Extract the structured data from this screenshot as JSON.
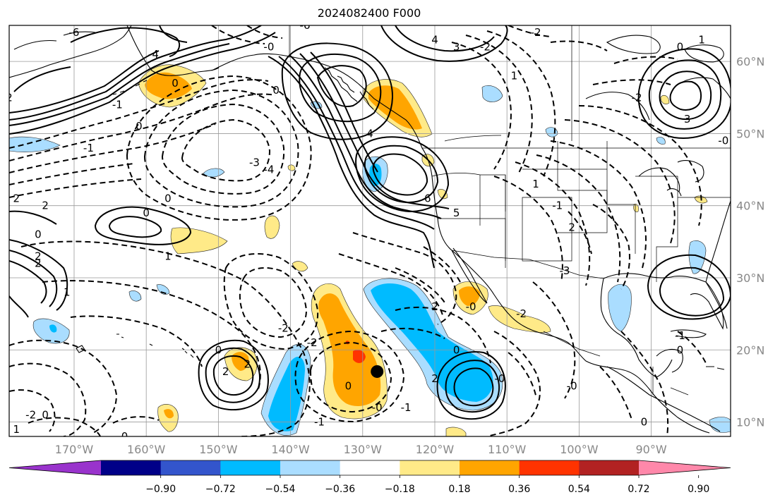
{
  "title": "2024082400 F000",
  "map": {
    "projection": "equirectangular",
    "lon_range": [
      -179,
      -79
    ],
    "lat_range": [
      8,
      65
    ],
    "grid": true,
    "lon_labels": [
      "170°W",
      "160°W",
      "150°W",
      "140°W",
      "130°W",
      "120°W",
      "110°W",
      "100°W",
      "90°W"
    ],
    "lat_labels": [
      "60°N",
      "50°N",
      "40°N",
      "30°N",
      "20°N",
      "10°N"
    ],
    "marker": {
      "type": "black-dot",
      "lon": "-128",
      "lat": "17"
    }
  },
  "contour_labels": [
    {
      "text": "2",
      "lon": -179,
      "lat": 55
    },
    {
      "text": "2",
      "lon": -178,
      "lat": 41
    },
    {
      "text": "2",
      "lon": -174,
      "lat": 40
    },
    {
      "text": "0",
      "lon": -175,
      "lat": 36
    },
    {
      "text": "2",
      "lon": -175,
      "lat": 33
    },
    {
      "text": "2",
      "lon": -175,
      "lat": 32
    },
    {
      "text": "1",
      "lon": -171,
      "lat": 28
    },
    {
      "text": "-1",
      "lon": -168,
      "lat": 48
    },
    {
      "text": "-3",
      "lon": -145,
      "lat": 46
    },
    {
      "text": "-4",
      "lon": -143,
      "lat": 45
    },
    {
      "text": "0",
      "lon": -157,
      "lat": 41
    },
    {
      "text": "0",
      "lon": -160,
      "lat": 39
    },
    {
      "text": "1",
      "lon": -157,
      "lat": 33
    },
    {
      "text": "-2",
      "lon": -176,
      "lat": 11
    },
    {
      "text": "1",
      "lon": -178,
      "lat": 9
    },
    {
      "text": "0",
      "lon": -174,
      "lat": 11
    },
    {
      "text": "0",
      "lon": -163,
      "lat": 8
    },
    {
      "text": "0",
      "lon": -150,
      "lat": 20
    },
    {
      "text": "2",
      "lon": -149,
      "lat": 17
    },
    {
      "text": "2",
      "lon": -146,
      "lat": 18
    },
    {
      "text": "-2",
      "lon": -141,
      "lat": 23
    },
    {
      "text": "-2",
      "lon": -137,
      "lat": 21
    },
    {
      "text": "0",
      "lon": -132,
      "lat": 15
    },
    {
      "text": "-0",
      "lon": -128,
      "lat": 12
    },
    {
      "text": "-1",
      "lon": -124,
      "lat": 12
    },
    {
      "text": "-1",
      "lon": -136,
      "lat": 10
    },
    {
      "text": "2",
      "lon": -120,
      "lat": 26
    },
    {
      "text": "0",
      "lon": -117,
      "lat": 20
    },
    {
      "text": "2",
      "lon": -120,
      "lat": 16
    },
    {
      "text": "-0",
      "lon": -111,
      "lat": 16
    },
    {
      "text": "-0",
      "lon": -101,
      "lat": 15
    },
    {
      "text": "0",
      "lon": -91,
      "lat": 10
    },
    {
      "text": "-0",
      "lon": -115,
      "lat": 26
    },
    {
      "text": "-2",
      "lon": -108,
      "lat": 25
    },
    {
      "text": "-6",
      "lon": -170,
      "lat": 64
    },
    {
      "text": "-4",
      "lon": -159,
      "lat": 61
    },
    {
      "text": "0",
      "lon": -156,
      "lat": 57
    },
    {
      "text": "-1",
      "lon": -164,
      "lat": 54
    },
    {
      "text": "0",
      "lon": -161,
      "lat": 51
    },
    {
      "text": "-0",
      "lon": -143,
      "lat": 62
    },
    {
      "text": "0",
      "lon": -142,
      "lat": 56
    },
    {
      "text": "-6",
      "lon": -138,
      "lat": 65
    },
    {
      "text": "4",
      "lon": -120,
      "lat": 63
    },
    {
      "text": "3",
      "lon": -117,
      "lat": 62
    },
    {
      "text": "-2",
      "lon": -113,
      "lat": 62
    },
    {
      "text": "-2",
      "lon": -106,
      "lat": 64
    },
    {
      "text": "1",
      "lon": -109,
      "lat": 58
    },
    {
      "text": "4",
      "lon": -129,
      "lat": 50
    },
    {
      "text": "6",
      "lon": -121,
      "lat": 41
    },
    {
      "text": "5",
      "lon": -117,
      "lat": 39
    },
    {
      "text": "-1",
      "lon": -103,
      "lat": 40
    },
    {
      "text": "2",
      "lon": -101,
      "lat": 37
    },
    {
      "text": "-3",
      "lon": -102,
      "lat": 31
    },
    {
      "text": "1",
      "lon": -106,
      "lat": 43
    },
    {
      "text": "-2",
      "lon": -92,
      "lat": 55
    },
    {
      "text": "3",
      "lon": -85,
      "lat": 52
    },
    {
      "text": "0",
      "lon": -86,
      "lat": 62
    },
    {
      "text": "-1",
      "lon": -86,
      "lat": 22
    },
    {
      "text": "0",
      "lon": -86,
      "lat": 20
    },
    {
      "text": "1",
      "lon": -83,
      "lat": 63
    },
    {
      "text": "-0",
      "lon": -80,
      "lat": 49
    }
  ],
  "colorbar": {
    "colors": [
      "#9933cc",
      "#000088",
      "#3355cc",
      "#00bbff",
      "#aaddff",
      "#ffffff",
      "#ffea88",
      "#ffa500",
      "#ff3300",
      "#b22222",
      "#ff88aa"
    ],
    "tick_labels": [
      "−0.90",
      "−0.72",
      "−0.54",
      "−0.36",
      "−0.18",
      "0.18",
      "0.36",
      "0.54",
      "0.72",
      "0.90"
    ],
    "extend": "both"
  }
}
